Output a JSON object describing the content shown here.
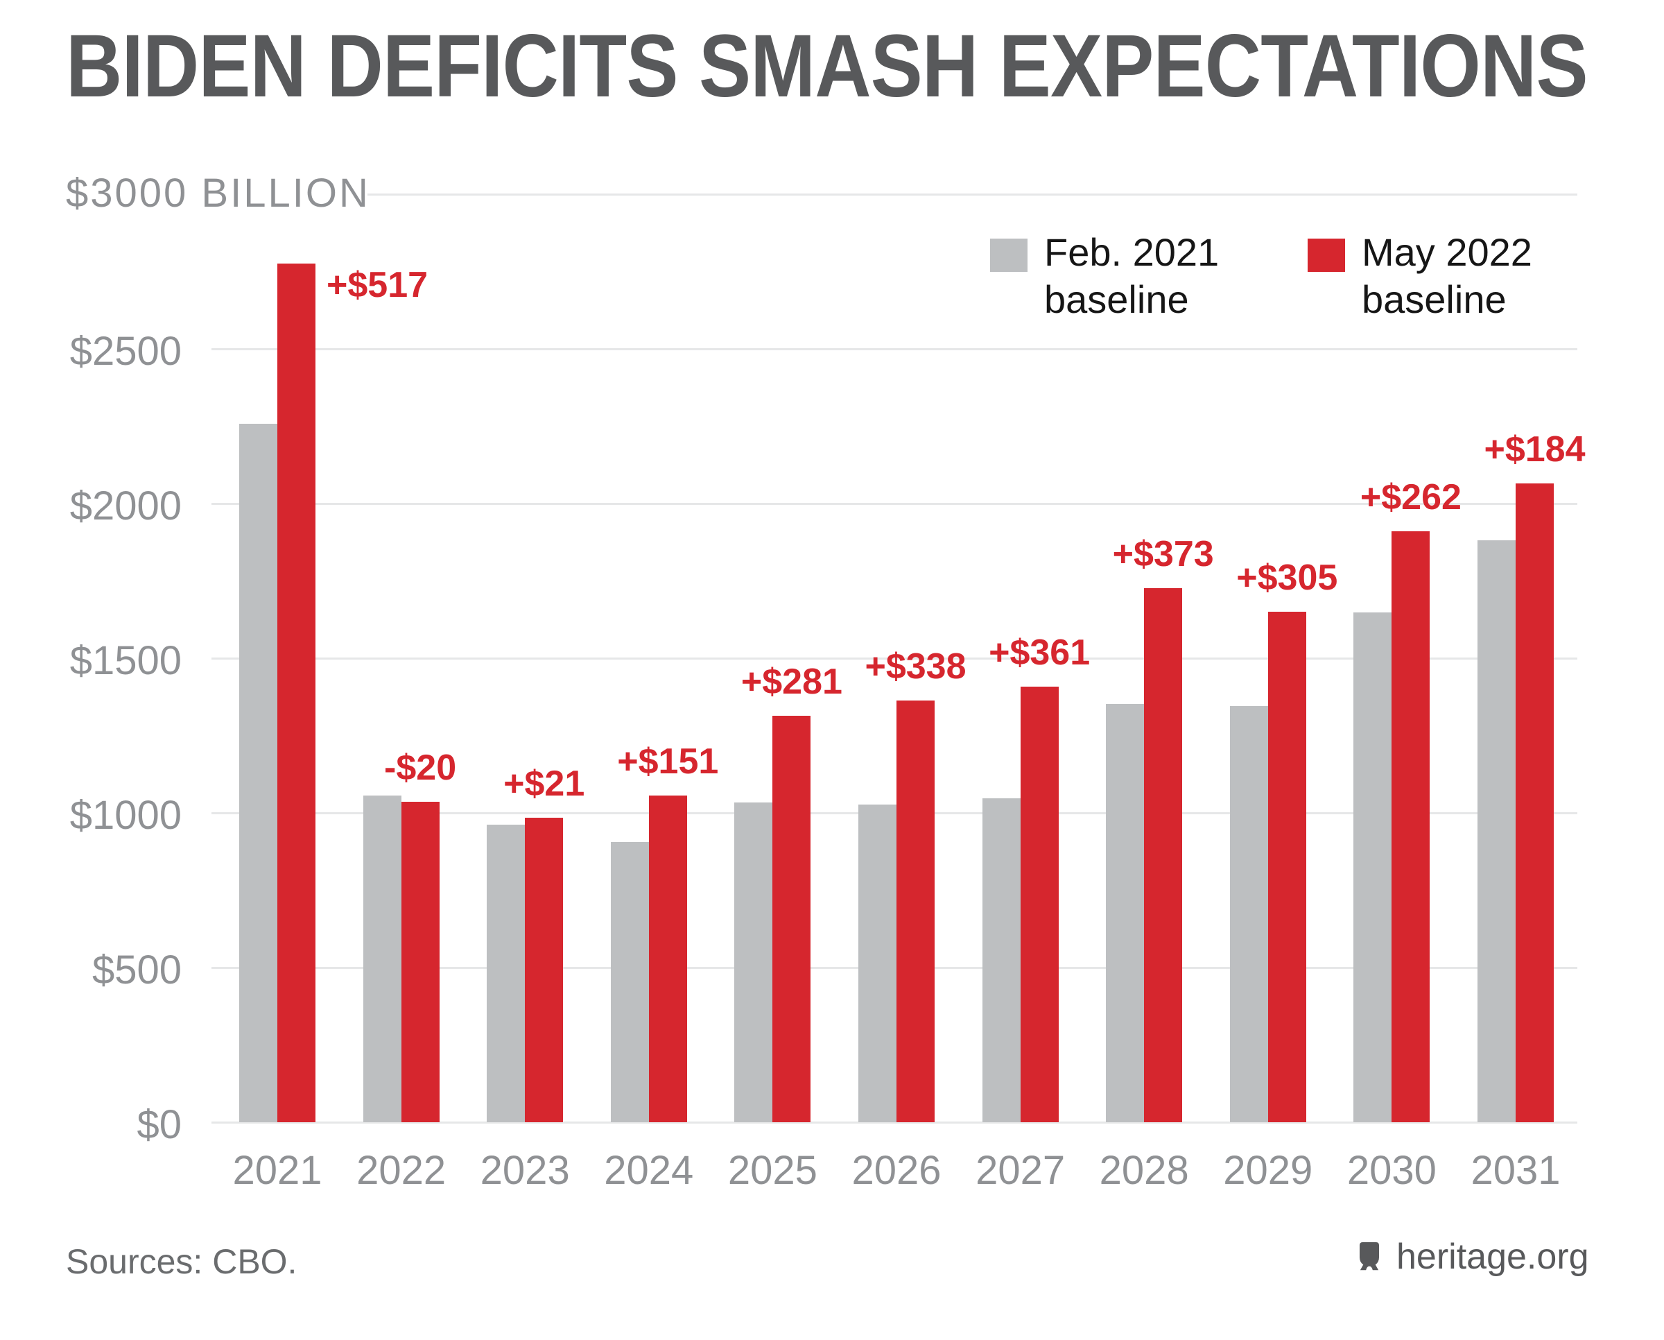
{
  "title": "BIDEN DEFICITS SMASH EXPECTATIONS",
  "chart_data": {
    "type": "bar",
    "title": "BIDEN DEFICITS SMASH EXPECTATIONS",
    "y_axis_top_label": "$3000 BILLION",
    "categories": [
      "2021",
      "2022",
      "2023",
      "2024",
      "2025",
      "2026",
      "2027",
      "2028",
      "2029",
      "2030",
      "2031"
    ],
    "series": [
      {
        "name": "Feb. 2021 baseline",
        "color": "#BDBFC1",
        "values": [
          2258,
          1056,
          963,
          905,
          1034,
          1026,
          1047,
          1353,
          1345,
          1648,
          1881
        ]
      },
      {
        "name": "May 2022 baseline",
        "color": "#D6262E",
        "values": [
          2775,
          1036,
          984,
          1056,
          1315,
          1364,
          1408,
          1726,
          1650,
          1910,
          2065
        ]
      }
    ],
    "diff_labels": [
      "+$517",
      "-$20",
      "+$21",
      "+$151",
      "+$281",
      "+$338",
      "+$361",
      "+$373",
      "+$305",
      "+$262",
      "+$184"
    ],
    "ylim": [
      0,
      3000
    ],
    "ytick_interval": 500,
    "yticks": [
      {
        "value": 0,
        "label": "$0"
      },
      {
        "value": 500,
        "label": "$500"
      },
      {
        "value": 1000,
        "label": "$1000"
      },
      {
        "value": 1500,
        "label": "$1500"
      },
      {
        "value": 2000,
        "label": "$2000"
      },
      {
        "value": 2500,
        "label": "$2500"
      }
    ],
    "grid": true,
    "legend_position": "top-right"
  },
  "legend": {
    "items": [
      {
        "line1": "Feb. 2021",
        "line2": "baseline",
        "color": "#BDBFC1"
      },
      {
        "line1": "May 2022",
        "line2": "baseline",
        "color": "#D6262E"
      }
    ]
  },
  "footer": {
    "sources_label": "Sources: CBO.",
    "site_label": "heritage.org"
  },
  "colors": {
    "accent_red": "#D6262E",
    "bar_gray": "#BDBFC1",
    "title_text": "#58595B",
    "axis_text": "#8F9194",
    "gridline": "#E6E7E8",
    "legend_text": "#161616",
    "sources_text": "#6A6C6E",
    "site_text": "#58595B"
  }
}
